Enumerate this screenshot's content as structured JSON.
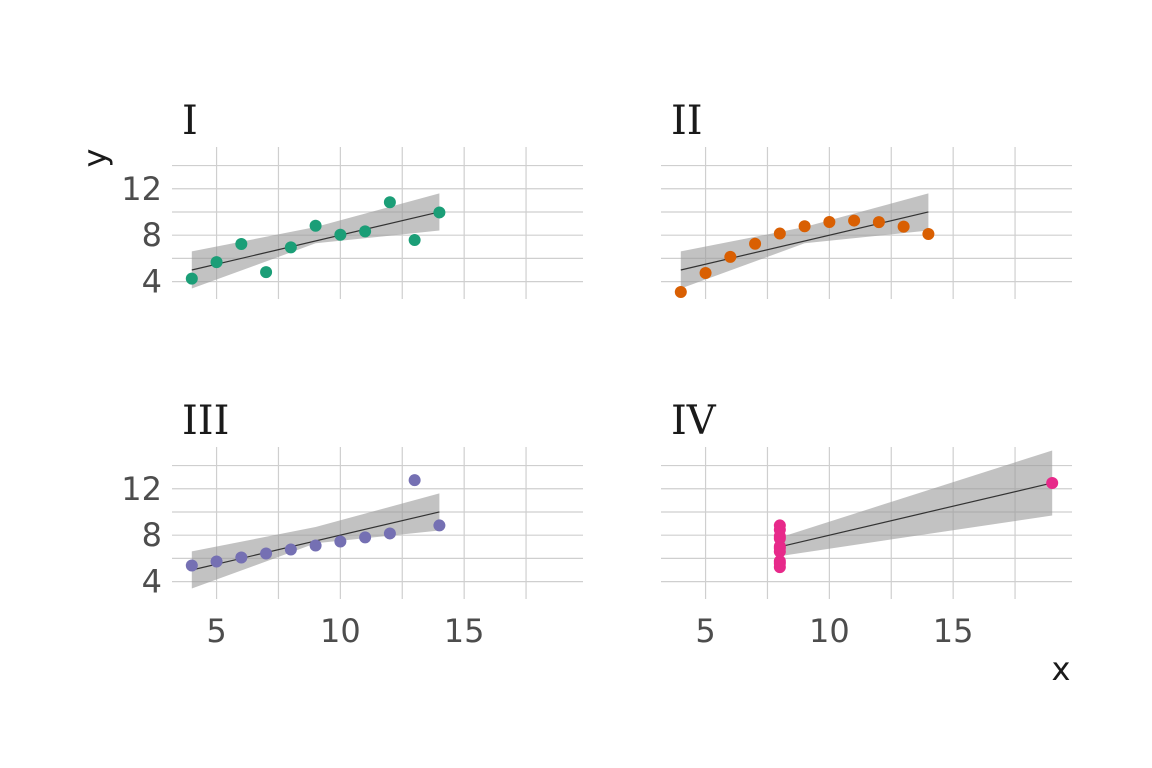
{
  "chart_data": {
    "type": "scatter",
    "xlabel": "x",
    "ylabel": "y",
    "xlim": [
      3.2,
      19.8
    ],
    "ylim": [
      2.5,
      15.6
    ],
    "x_ticks": [
      5,
      10,
      15
    ],
    "y_ticks": [
      4,
      8,
      12
    ],
    "x_tick_labels": [
      "5",
      "10",
      "15"
    ],
    "y_tick_labels": [
      "4",
      "8",
      "12"
    ],
    "grid": true,
    "panels": [
      {
        "title": "I",
        "color": "#1b9e77",
        "x": [
          10,
          8,
          13,
          9,
          11,
          14,
          6,
          4,
          12,
          7,
          5
        ],
        "y": [
          8.04,
          6.95,
          7.58,
          8.81,
          8.33,
          9.96,
          7.24,
          4.26,
          10.84,
          4.82,
          5.68
        ],
        "fit": {
          "x": [
            4,
            14
          ],
          "y": [
            5.0,
            10.0
          ]
        },
        "band": {
          "x": [
            4,
            9,
            14
          ],
          "lower": [
            3.4,
            7.3,
            8.4
          ],
          "upper": [
            6.6,
            8.7,
            11.6
          ]
        }
      },
      {
        "title": "II",
        "color": "#d95f02",
        "x": [
          10,
          8,
          13,
          9,
          11,
          14,
          6,
          4,
          12,
          7,
          5
        ],
        "y": [
          9.14,
          8.14,
          8.74,
          8.77,
          9.26,
          8.1,
          6.13,
          3.1,
          9.13,
          7.26,
          4.74
        ],
        "fit": {
          "x": [
            4,
            14
          ],
          "y": [
            5.0,
            10.0
          ]
        },
        "band": {
          "x": [
            4,
            9,
            14
          ],
          "lower": [
            3.4,
            7.3,
            8.4
          ],
          "upper": [
            6.6,
            8.7,
            11.6
          ]
        }
      },
      {
        "title": "III",
        "color": "#7570b3",
        "x": [
          10,
          8,
          13,
          9,
          11,
          14,
          6,
          4,
          12,
          7,
          5
        ],
        "y": [
          7.46,
          6.77,
          12.74,
          7.11,
          7.81,
          8.84,
          6.08,
          5.39,
          8.15,
          6.42,
          5.73
        ],
        "fit": {
          "x": [
            4,
            14
          ],
          "y": [
            5.0,
            10.0
          ]
        },
        "band": {
          "x": [
            4,
            9,
            14
          ],
          "lower": [
            3.4,
            7.3,
            8.4
          ],
          "upper": [
            6.6,
            8.7,
            11.6
          ]
        }
      },
      {
        "title": "IV",
        "color": "#e7298a",
        "x": [
          8,
          8,
          8,
          8,
          8,
          8,
          8,
          19,
          8,
          8,
          8
        ],
        "y": [
          6.58,
          5.76,
          7.71,
          8.84,
          8.47,
          7.04,
          5.25,
          12.5,
          5.56,
          7.91,
          6.89
        ],
        "fit": {
          "x": [
            8,
            19
          ],
          "y": [
            7.0,
            12.5
          ]
        },
        "band": {
          "x": [
            8,
            19
          ],
          "lower": [
            6.2,
            9.7
          ],
          "upper": [
            7.8,
            15.3
          ]
        }
      }
    ]
  }
}
